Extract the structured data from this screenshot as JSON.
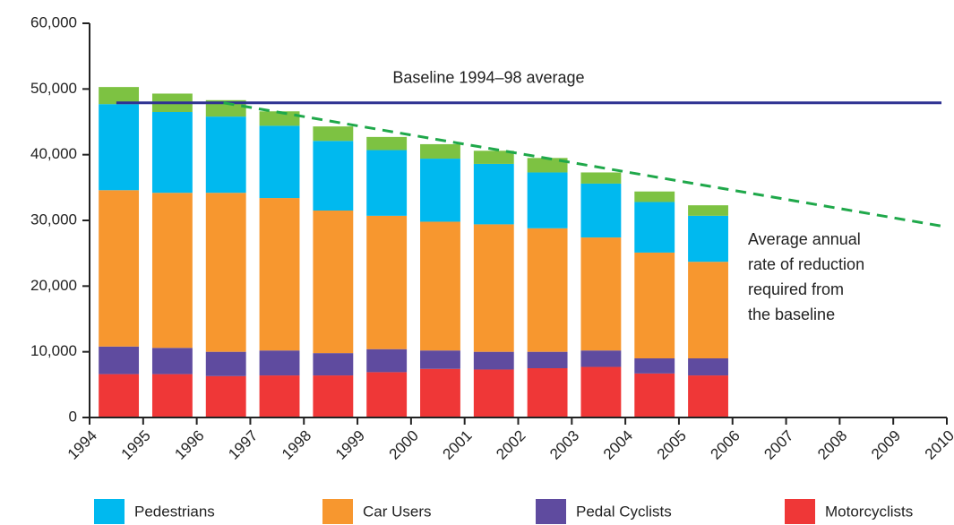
{
  "chart_data": {
    "type": "bar",
    "stacked": true,
    "x": [
      1994,
      1995,
      1996,
      1997,
      1998,
      1999,
      2000,
      2001,
      2002,
      2003,
      2004,
      2005
    ],
    "series": [
      {
        "name": "Motorcyclists",
        "color": "#ef3737",
        "values": [
          6600,
          6600,
          6300,
          6400,
          6400,
          6900,
          7400,
          7300,
          7500,
          7700,
          6700,
          6400
        ]
      },
      {
        "name": "Pedal Cyclists",
        "color": "#5f4b9f",
        "values": [
          4200,
          4000,
          3700,
          3800,
          3400,
          3500,
          2800,
          2700,
          2500,
          2500,
          2300,
          2600
        ]
      },
      {
        "name": "Car Users",
        "color": "#f7972f",
        "values": [
          23800,
          23600,
          24200,
          23200,
          21700,
          20300,
          19600,
          19400,
          18800,
          17200,
          16100,
          14700
        ]
      },
      {
        "name": "Pedestrians",
        "color": "#00b9ef",
        "values": [
          13100,
          12300,
          11600,
          11000,
          10600,
          10000,
          9600,
          9200,
          8500,
          8200,
          7700,
          7000
        ]
      },
      {
        "color": "#7dc242",
        "values": [
          2600,
          2800,
          2500,
          2200,
          2200,
          2000,
          2200,
          2000,
          2200,
          1700,
          1600,
          1600
        ]
      }
    ],
    "xlim": [
      1994,
      2010
    ],
    "xticks": [
      1994,
      1995,
      1996,
      1997,
      1998,
      1999,
      2000,
      2001,
      2002,
      2003,
      2004,
      2005,
      2006,
      2007,
      2008,
      2009,
      2010
    ],
    "ylim": [
      0,
      60000
    ],
    "yticks": [
      0,
      {
        "value": 10000,
        "label": "10,000"
      },
      {
        "value": 20000,
        "label": "20,000"
      },
      {
        "value": 30000,
        "label": "30,000"
      },
      {
        "value": 40000,
        "label": "40,000"
      },
      {
        "value": 50000,
        "label": "50,000"
      },
      {
        "value": 60000,
        "label": "60,000"
      }
    ],
    "baseline": {
      "label": "Baseline 1994–98 average",
      "color": "#2e3192",
      "x": [
        1994.5,
        2009.9
      ],
      "values": [
        47900,
        47900
      ]
    },
    "target": {
      "label": [
        "Average annual",
        "rate of reduction",
        "required from",
        "the baseline"
      ],
      "color": "#1fa84a",
      "x": [
        1996.5,
        2010
      ],
      "values": [
        47900,
        29000
      ]
    }
  }
}
